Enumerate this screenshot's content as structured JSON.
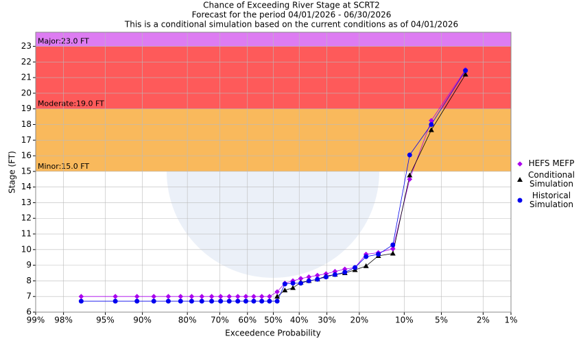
{
  "chart_data": {
    "type": "scatter",
    "title": "Chance of Exceeding River Stage at SCRT2",
    "subtitle": "Forecast for the period 04/01/2026 - 06/30/2026",
    "note": "This is a conditional simulation based on the current conditions as of 04/01/2026",
    "xlabel": "Exceedence Probability",
    "ylabel": "Stage (FT)",
    "xscale": "probit",
    "xlim": [
      99,
      1
    ],
    "xticks": [
      {
        "value": 99,
        "label": "99%"
      },
      {
        "value": 98,
        "label": "98%"
      },
      {
        "value": 95,
        "label": "95%"
      },
      {
        "value": 90,
        "label": "90%"
      },
      {
        "value": 80,
        "label": "80%"
      },
      {
        "value": 70,
        "label": "70%"
      },
      {
        "value": 60,
        "label": "60%"
      },
      {
        "value": 50,
        "label": "50%"
      },
      {
        "value": 40,
        "label": "40%"
      },
      {
        "value": 30,
        "label": "30%"
      },
      {
        "value": 20,
        "label": "20%"
      },
      {
        "value": 10,
        "label": "10%"
      },
      {
        "value": 5,
        "label": "5%"
      },
      {
        "value": 2,
        "label": "2%"
      },
      {
        "value": 1,
        "label": "1%"
      }
    ],
    "ylim": [
      6,
      23.9
    ],
    "yticks": [
      6,
      7,
      8,
      9,
      10,
      11,
      12,
      13,
      14,
      15,
      16,
      17,
      18,
      19,
      20,
      21,
      22,
      23
    ],
    "grid": true,
    "thresholds": [
      {
        "label": "Minor:15.0 FT",
        "value": 15,
        "color": "#f9b95c"
      },
      {
        "label": "Moderate:19.0 FT",
        "value": 19,
        "color": "#fe5a5a"
      },
      {
        "label": "Major:23.0 FT",
        "value": 23,
        "color": "#dd7cf2"
      }
    ],
    "legend": "right",
    "series": [
      {
        "name": "HEFS MEFP",
        "color": "#aa00ee",
        "marker": "diamond",
        "x": [
          97.0,
          93.9,
          90.9,
          87.9,
          84.8,
          81.8,
          78.8,
          75.8,
          72.7,
          69.7,
          66.7,
          63.6,
          60.6,
          57.6,
          54.5,
          51.5,
          48.5,
          45.5,
          42.4,
          39.4,
          36.4,
          33.3,
          30.3,
          27.3,
          24.2,
          21.2,
          18.2,
          15.2,
          12.1,
          9.1,
          6.1,
          3.0
        ],
        "values": [
          7.0,
          7.0,
          7.0,
          7.0,
          7.0,
          7.0,
          7.0,
          7.0,
          7.0,
          7.0,
          7.0,
          7.0,
          7.0,
          7.0,
          7.0,
          7.0,
          7.3,
          7.85,
          8.0,
          8.15,
          8.25,
          8.35,
          8.45,
          8.6,
          8.75,
          8.85,
          9.7,
          9.8,
          10.05,
          14.5,
          18.25,
          21.5
        ]
      },
      {
        "name": "Conditional Simulation",
        "color": "#000000",
        "marker": "triangle",
        "x": [
          48.5,
          45.5,
          42.4,
          39.4,
          36.4,
          33.3,
          30.3,
          27.3,
          24.2,
          21.2,
          18.2,
          15.2,
          12.1,
          9.1,
          6.1,
          3.0
        ],
        "values": [
          7.0,
          7.4,
          7.55,
          7.9,
          8.0,
          8.1,
          8.3,
          8.4,
          8.5,
          8.7,
          8.95,
          9.6,
          9.75,
          14.75,
          17.65,
          21.2
        ]
      },
      {
        "name": "Historical Simulation",
        "color": "#0000ee",
        "marker": "circle",
        "x": [
          97.0,
          93.9,
          90.9,
          87.9,
          84.8,
          81.8,
          78.8,
          75.8,
          72.7,
          69.7,
          66.7,
          63.6,
          60.6,
          57.6,
          54.5,
          51.5,
          48.5,
          45.5,
          42.4,
          39.4,
          36.4,
          33.3,
          30.3,
          27.3,
          24.2,
          21.2,
          18.2,
          15.2,
          12.1,
          9.1,
          6.1,
          3.0
        ],
        "values": [
          6.7,
          6.7,
          6.7,
          6.7,
          6.7,
          6.7,
          6.7,
          6.7,
          6.7,
          6.7,
          6.7,
          6.7,
          6.7,
          6.7,
          6.7,
          6.7,
          6.7,
          7.8,
          7.85,
          7.85,
          8.0,
          8.1,
          8.25,
          8.4,
          8.55,
          8.85,
          9.55,
          9.7,
          10.3,
          16.05,
          18.0,
          21.45
        ]
      }
    ]
  }
}
